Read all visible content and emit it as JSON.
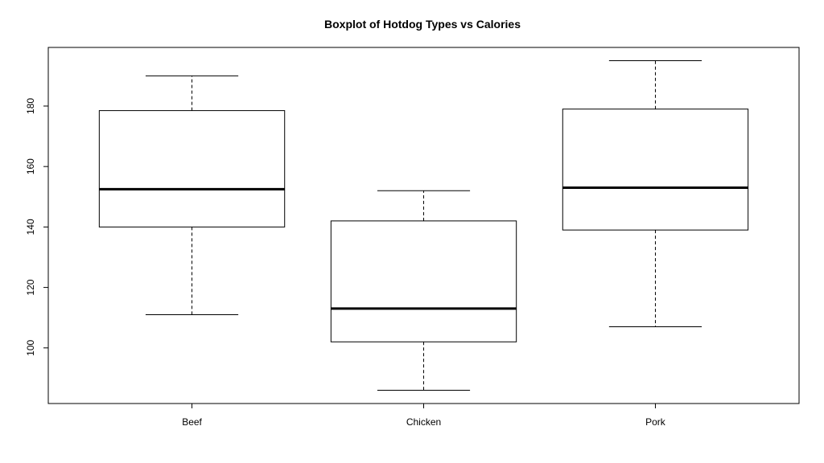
{
  "chart_data": {
    "type": "boxplot",
    "title": "Boxplot of Hotdog Types vs Calories",
    "xlabel": "",
    "ylabel": "",
    "categories": [
      "Beef",
      "Chicken",
      "Pork"
    ],
    "boxes": [
      {
        "category": "Beef",
        "whisker_low": 111,
        "q1": 140,
        "median": 152.5,
        "q3": 178.5,
        "whisker_high": 190
      },
      {
        "category": "Chicken",
        "whisker_low": 86,
        "q1": 102,
        "median": 113,
        "q3": 142,
        "whisker_high": 152
      },
      {
        "category": "Pork",
        "whisker_low": 107,
        "q1": 139,
        "median": 153,
        "q3": 179,
        "whisker_high": 195
      }
    ],
    "y_ticks": [
      100,
      120,
      140,
      160,
      180
    ],
    "ylim": [
      81.6,
      199.4
    ],
    "grid": false,
    "legend": "none",
    "colors": {
      "box_fill": "#ffffff",
      "stroke": "#000000"
    }
  }
}
